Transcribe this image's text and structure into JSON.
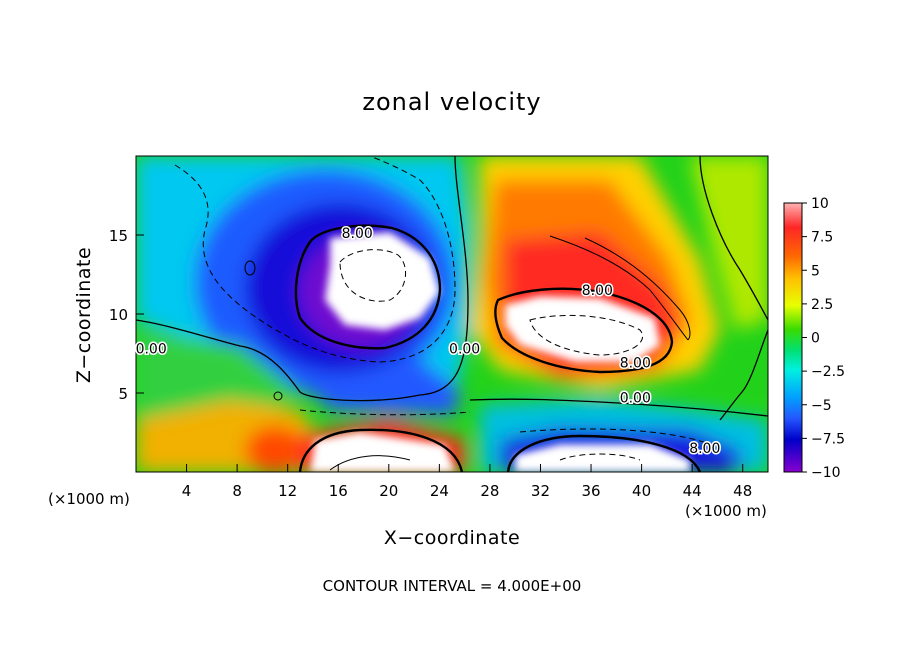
{
  "chart_data": {
    "type": "heatmap",
    "title": "zonal velocity",
    "xlabel": "X−coordinate",
    "ylabel": "Z−coordinate",
    "x_unit_left": "(×1000 m)",
    "x_unit_right": "(×1000 m)",
    "xlim": [
      0,
      50
    ],
    "ylim": [
      0,
      20
    ],
    "x_ticks": [
      4,
      8,
      12,
      16,
      20,
      24,
      28,
      32,
      36,
      40,
      44,
      48
    ],
    "y_ticks": [
      5,
      10,
      15
    ],
    "colorbar": {
      "vmin": -10,
      "vmax": 10,
      "ticks": [
        "10",
        "7.5",
        "5",
        "2.5",
        "0",
        "−2.5",
        "−5",
        "−7.5",
        "−10"
      ],
      "tick_values": [
        10,
        7.5,
        5,
        2.5,
        0,
        -2.5,
        -5,
        -7.5,
        -10
      ]
    },
    "contour_labels": [
      {
        "text": "8.00",
        "x": 17.5,
        "y": 14.8
      },
      {
        "text": "8.00",
        "x": 36.5,
        "y": 11.2
      },
      {
        "text": "8.00",
        "x": 39.5,
        "y": 6.6
      },
      {
        "text": "0.00",
        "x": 39.5,
        "y": 4.4
      },
      {
        "text": "0.00",
        "x": 26.0,
        "y": 7.5
      },
      {
        "text": "0.00",
        "x": 1.2,
        "y": 7.5
      },
      {
        "text": "8.00",
        "x": 45.0,
        "y": 1.2
      }
    ],
    "features": [
      {
        "kind": "negative-jet-core",
        "x": 19.5,
        "y": 12.5,
        "peak": -10
      },
      {
        "kind": "positive-jet-core",
        "x": 36,
        "y": 9,
        "peak": 10
      },
      {
        "kind": "positive-low-level-core",
        "x": 20,
        "y": 1,
        "peak": 10
      },
      {
        "kind": "negative-low-level-core",
        "x": 36,
        "y": 1,
        "peak": -10
      }
    ],
    "footnote": "CONTOUR INTERVAL = 4.000E+00"
  }
}
